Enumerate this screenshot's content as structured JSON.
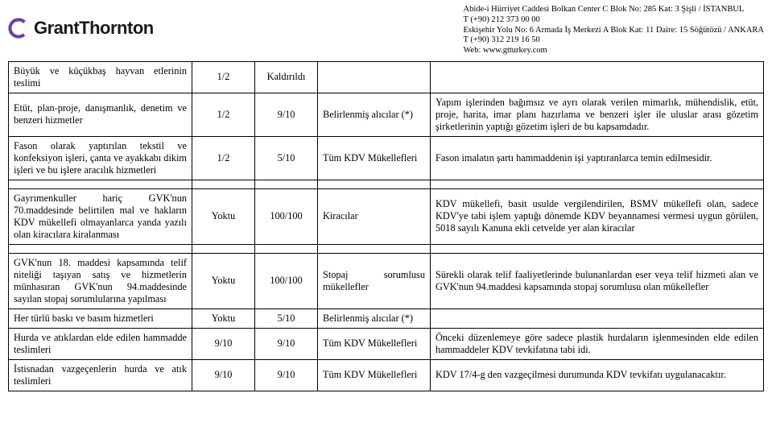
{
  "brand": {
    "name": "GrantThornton",
    "logo_colors": {
      "fill": "#6b3fa0"
    }
  },
  "address": {
    "line1": "Abide-i Hürriyet Caddesi Bolkan Center C Blok No: 285 Kat: 3 Şişli / İSTANBUL",
    "line2": "T  (+90) 212 373 00 00",
    "line3": "Eskişehir Yolu No: 6 Armada İş Merkezi A Blok Kat: 11 Daire: 15 Söğütözü / ANKARA",
    "line4": "T  (+90) 312 219 16 50",
    "line5": "Web:  www.gtturkey.com"
  },
  "rows": [
    {
      "desc": "Büyük ve küçükbaş hayvan etlerinin teslimi",
      "col2": "1/2",
      "col3": "Kaldırıldı",
      "col4": "",
      "note": ""
    },
    {
      "desc": "Etüt, plan-proje, danışmanlık, denetim ve benzeri hizmetler",
      "col2": "1/2",
      "col3": "9/10",
      "col4": "Belirlenmiş alıcılar (*)",
      "note": "Yapım işlerinden bağımsız ve ayrı olarak verilen mimarlık, mühendislik, etüt, proje, harita, imar planı hazırlama ve benzeri işler ile uluslar arası gözetim şirketlerinin yaptığı gözetim işleri de bu kapsamdadır."
    },
    {
      "desc": "Fason olarak yaptırılan tekstil ve konfeksiyon işleri, çanta ve ayakkabı dikim işleri ve bu işlere aracılık hizmetleri",
      "col2": "1/2",
      "col3": "5/10",
      "col4": "Tüm KDV Mükellefleri",
      "note": "Fason imalatın şartı hammaddenin işi yaptıranlarca temin edilmesidir."
    },
    {
      "desc": "Gayrımenkuller hariç GVK'nun 70.maddesinde belirtilen mal ve hakların KDV mükellefi olmayanlarca yanda yazılı olan kiracılara kiralanması",
      "col2": "Yoktu",
      "col3": "100/100",
      "col4": "Kiracılar",
      "note": " KDV mükellefi, basit usulde vergilendirilen, BSMV mükellefi olan, sadece KDV'ye tabi işlem yaptığı dönemde KDV beyannamesi vermesi uygun görülen, 5018 sayılı Kanuna ekli cetvelde yer alan kiracılar"
    },
    {
      "desc": "GVK'nun 18. maddesi kapsamında telif niteliği taşıyan satış ve hizmetlerin münhasıran GVK'nun 94.maddesinde sayılan stopaj sorumlularına yapılması",
      "col2": "Yoktu",
      "col3": "100/100",
      "col4": "Stopaj sorumlusu mükellefler",
      "note": " Sürekli olarak telif faaliyetlerinde bulunanlardan eser veya telif hizmeti alan ve GVK'nun 94.maddesi kapsamında stopaj sorumlusu olan mükellefler"
    },
    {
      "desc": "Her türlü baskı ve basım hizmetleri",
      "col2": "Yoktu",
      "col3": "5/10",
      "col4": "Belirlenmiş alıcılar (*)",
      "note": ""
    },
    {
      "desc": "Hurda ve atıklardan elde edilen hammadde teslimleri",
      "col2": "9/10",
      "col3": "9/10",
      "col4": "Tüm KDV Mükellefleri",
      "note": "Önceki düzenlemeye göre sadece plastik hurdaların işlenmesinden elde edilen hammaddeler KDV tevkifatına tabi idi."
    },
    {
      "desc": "İstisnadan vazgeçenlerin hurda ve atık teslimleri",
      "col2": "9/10",
      "col3": "9/10",
      "col4": "Tüm KDV Mükellefleri",
      "note": "KDV 17/4-g den vazgeçilmesi durumunda KDV tevkifatı uygulanacaktır."
    }
  ]
}
